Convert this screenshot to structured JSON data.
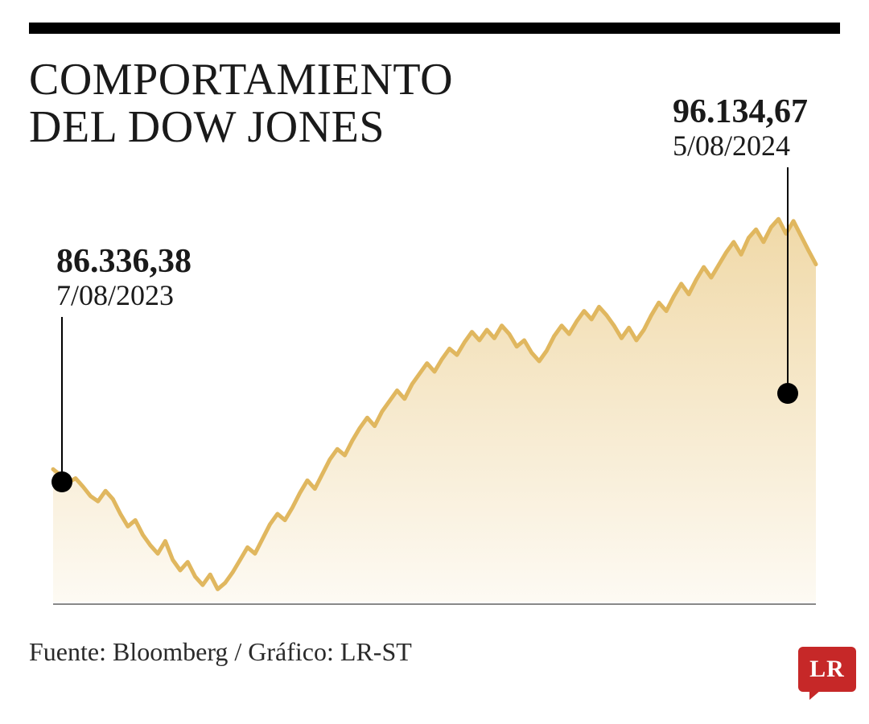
{
  "title_line1": "COMPORTAMIENTO",
  "title_line2": "DEL DOW JONES",
  "start": {
    "value": "86.336,38",
    "date": "7/08/2023"
  },
  "end": {
    "value": "96.134,67",
    "date": "5/08/2024"
  },
  "source": "Fuente: Bloomberg / Gráfico: LR-ST",
  "logo_text": "LR",
  "chart": {
    "type": "area",
    "line_color": "#e0b75f",
    "line_width": 5,
    "fill_top": "#f0d9a8",
    "fill_bottom": "#fdfaf3",
    "background": "#ffffff",
    "marker_color": "#000000",
    "marker_radius": 13,
    "axis_color": "#888888",
    "y_min": 80000,
    "y_max": 100000,
    "values": [
      86336,
      86050,
      85700,
      85900,
      85500,
      85050,
      84800,
      85300,
      84900,
      84200,
      83600,
      83900,
      83200,
      82700,
      82300,
      82900,
      82000,
      81500,
      81900,
      81200,
      80800,
      81300,
      80600,
      80900,
      81400,
      82000,
      82600,
      82300,
      83000,
      83700,
      84200,
      83900,
      84500,
      85200,
      85800,
      85400,
      86100,
      86800,
      87300,
      87000,
      87700,
      88300,
      88800,
      88400,
      89100,
      89600,
      90100,
      89700,
      90400,
      90900,
      91400,
      91000,
      91600,
      92100,
      91800,
      92400,
      92900,
      92500,
      93000,
      92600,
      93200,
      92800,
      92200,
      92500,
      91900,
      91500,
      92000,
      92700,
      93200,
      92800,
      93400,
      93900,
      93500,
      94100,
      93700,
      93200,
      92600,
      93100,
      92500,
      93000,
      93700,
      94300,
      93900,
      94600,
      95200,
      94700,
      95400,
      96000,
      95500,
      96100,
      96700,
      97200,
      96600,
      97400,
      97800,
      97200,
      97900,
      98300,
      97600,
      98200,
      97500,
      96800,
      96134
    ]
  }
}
